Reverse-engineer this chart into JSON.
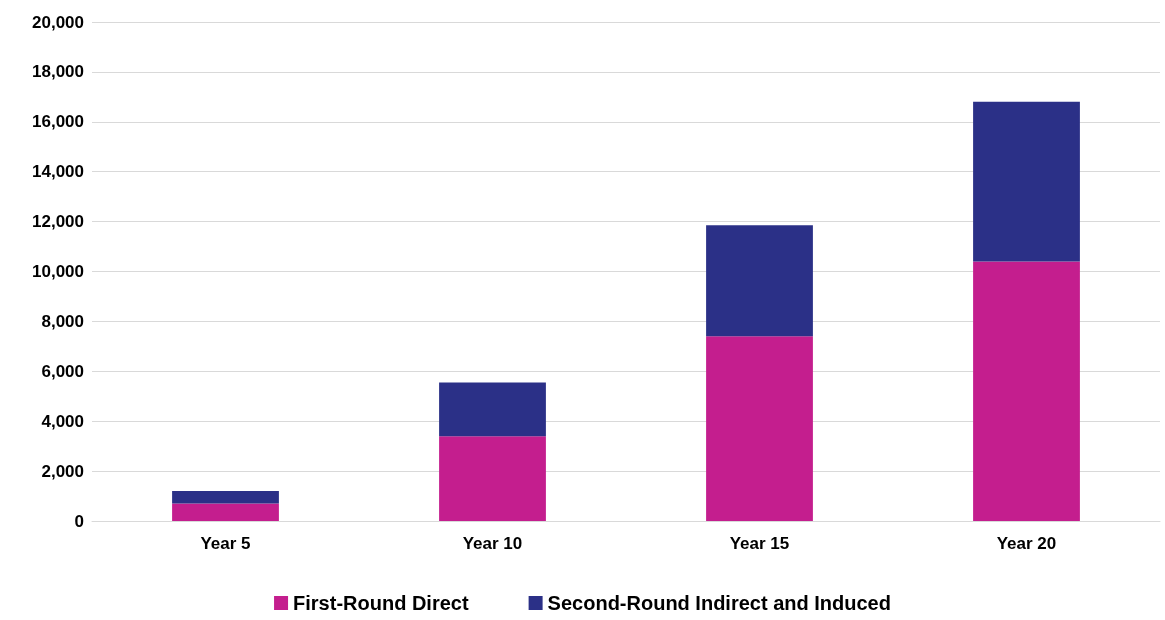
{
  "chart_data": {
    "type": "bar",
    "stacked": true,
    "categories": [
      "Year 5",
      "Year 10",
      "Year 15",
      "Year 20"
    ],
    "series": [
      {
        "name": "First-Round Direct",
        "color": "#c41e8e",
        "values": [
          700,
          3400,
          7400,
          10400
        ]
      },
      {
        "name": "Second-Round Indirect and Induced",
        "color": "#2b3087",
        "values": [
          500,
          2150,
          4450,
          6400
        ]
      }
    ],
    "ylim": [
      0,
      20000
    ],
    "yticks": [
      0,
      {
        "value": 2000,
        "label": "2,000"
      },
      {
        "value": 4000,
        "label": "4,000"
      },
      {
        "value": 6000,
        "label": "6,000"
      },
      {
        "value": 8000,
        "label": "8,000"
      },
      {
        "value": 10000,
        "label": "10,000"
      },
      {
        "value": 12000,
        "label": "12,000"
      },
      {
        "value": 14000,
        "label": "14,000"
      },
      {
        "value": 16000,
        "label": "16,000"
      },
      {
        "value": 18000,
        "label": "18,000"
      },
      {
        "value": 20000,
        "label": "20,000"
      }
    ],
    "grid": "y",
    "legend": "bottom"
  }
}
